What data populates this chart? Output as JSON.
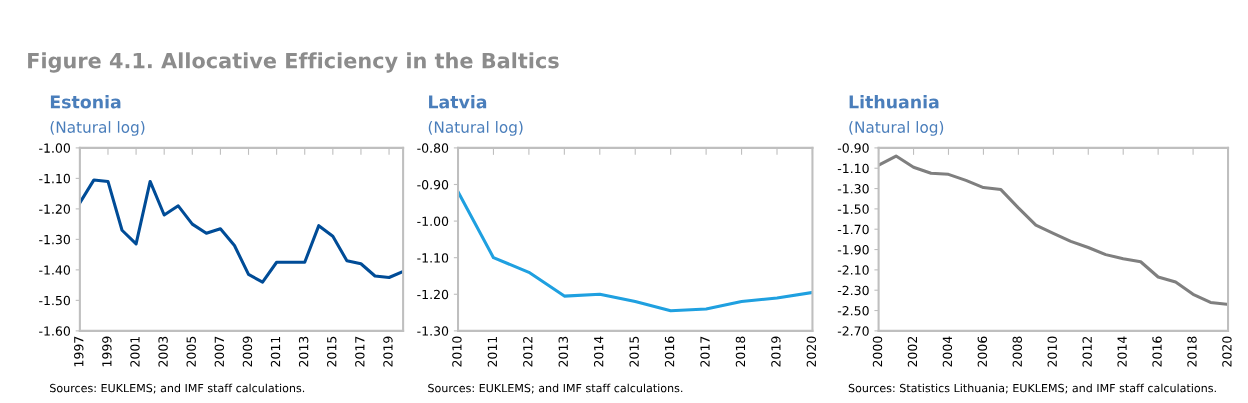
{
  "chart_data": [
    {
      "type": "line",
      "title": "Estonia",
      "subtitle": "(Natural log)",
      "x": [
        1997,
        1998,
        1999,
        2000,
        2001,
        2002,
        2003,
        2004,
        2005,
        2006,
        2007,
        2008,
        2009,
        2010,
        2011,
        2012,
        2013,
        2014,
        2015,
        2016,
        2017,
        2018,
        2019,
        2020
      ],
      "series": [
        {
          "color": "#004c97",
          "values": [
            -1.18,
            -1.105,
            -1.11,
            -1.27,
            -1.315,
            -1.11,
            -1.22,
            -1.19,
            -1.25,
            -1.28,
            -1.265,
            -1.32,
            -1.415,
            -1.44,
            -1.375,
            -1.375,
            -1.375,
            -1.255,
            -1.29,
            -1.37,
            -1.38,
            -1.42,
            -1.425,
            -1.405
          ]
        }
      ],
      "xlim": [
        1997,
        2020
      ],
      "xticks": [
        1997,
        1999,
        2001,
        2003,
        2005,
        2007,
        2009,
        2011,
        2013,
        2015,
        2017,
        2019
      ],
      "ylim": [
        -1.6,
        -1.0
      ],
      "yticks": [
        {
          "value": -1.6,
          "label": "-1.60"
        },
        {
          "value": -1.5,
          "label": "-1.50"
        },
        {
          "value": -1.4,
          "label": "-1.40"
        },
        {
          "value": -1.3,
          "label": "-1.30"
        },
        {
          "value": -1.2,
          "label": "-1.20"
        },
        {
          "value": -1.1,
          "label": "-1.10"
        },
        {
          "value": -1.0,
          "label": "-1.00"
        }
      ],
      "grid": false,
      "legend": false,
      "marker": "none",
      "line_style": "solid",
      "annotations": [
        "Figure 4.1. Allocative Efficiency in the Baltics",
        "Sources: EUKLEMS; and IMF staff calculations."
      ]
    },
    {
      "type": "line",
      "title": "Latvia",
      "subtitle": "(Natural log)",
      "x": [
        2010,
        2011,
        2012,
        2013,
        2014,
        2015,
        2016,
        2017,
        2018,
        2019,
        2020
      ],
      "series": [
        {
          "color": "#1fa0e0",
          "values": [
            -0.92,
            -1.1,
            -1.14,
            -1.205,
            -1.2,
            -1.22,
            -1.245,
            -1.24,
            -1.22,
            -1.21,
            -1.195
          ]
        }
      ],
      "xlim": [
        2010,
        2020
      ],
      "xticks": [
        2010,
        2011,
        2012,
        2013,
        2014,
        2015,
        2016,
        2017,
        2018,
        2019,
        2020
      ],
      "ylim": [
        -1.3,
        -0.8
      ],
      "yticks": [
        {
          "value": -1.3,
          "label": "-1.30"
        },
        {
          "value": -1.2,
          "label": "-1.20"
        },
        {
          "value": -1.1,
          "label": "-1.10"
        },
        {
          "value": -1.0,
          "label": "-1.00"
        },
        {
          "value": -0.9,
          "label": "-0.90"
        },
        {
          "value": -0.8,
          "label": "-0.80"
        }
      ],
      "grid": false,
      "legend": false,
      "marker": "none",
      "line_style": "solid",
      "annotations": [
        "Sources: EUKLEMS; and IMF staff calculations."
      ]
    },
    {
      "type": "line",
      "title": "Lithuania",
      "subtitle": "(Natural log)",
      "x": [
        2000,
        2001,
        2002,
        2003,
        2004,
        2005,
        2006,
        2007,
        2008,
        2009,
        2010,
        2011,
        2012,
        2013,
        2014,
        2015,
        2016,
        2017,
        2018,
        2019,
        2020
      ],
      "series": [
        {
          "color": "#7f7f7f",
          "values": [
            -1.07,
            -0.98,
            -1.09,
            -1.15,
            -1.16,
            -1.22,
            -1.29,
            -1.31,
            -1.49,
            -1.66,
            -1.74,
            -1.82,
            -1.88,
            -1.95,
            -1.99,
            -2.02,
            -2.17,
            -2.22,
            -2.34,
            -2.42,
            -2.44
          ]
        }
      ],
      "xlim": [
        2000,
        2020
      ],
      "xticks": [
        2000,
        2002,
        2004,
        2006,
        2008,
        2010,
        2012,
        2014,
        2016,
        2018,
        2020
      ],
      "ylim": [
        -2.7,
        -0.9
      ],
      "yticks": [
        {
          "value": -2.7,
          "label": "-2.70"
        },
        {
          "value": -2.5,
          "label": "-2.50"
        },
        {
          "value": -2.3,
          "label": "-2.30"
        },
        {
          "value": -2.1,
          "label": "-2.10"
        },
        {
          "value": -1.9,
          "label": "-1.90"
        },
        {
          "value": -1.7,
          "label": "-1.70"
        },
        {
          "value": -1.5,
          "label": "-1.50"
        },
        {
          "value": -1.3,
          "label": "-1.30"
        },
        {
          "value": -1.1,
          "label": "-1.10"
        },
        {
          "value": -0.9,
          "label": "-0.90"
        }
      ],
      "grid": false,
      "legend": false,
      "marker": "none",
      "line_style": "solid",
      "annotations": [
        "Sources: Statistics Lithuania; EUKLEMS; and IMF staff calculations."
      ]
    }
  ]
}
